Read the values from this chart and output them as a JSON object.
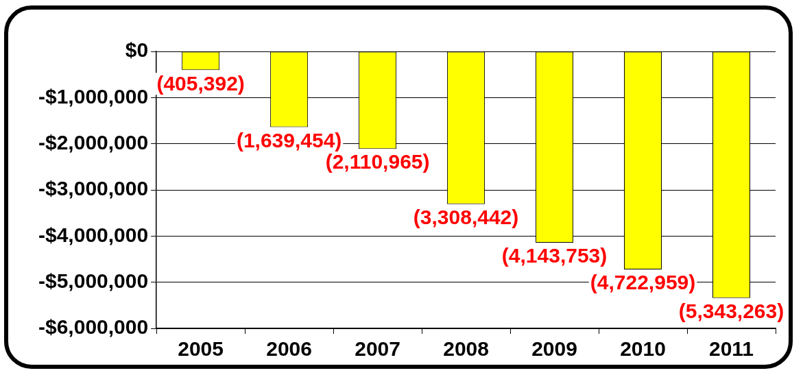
{
  "chart_data": {
    "type": "bar",
    "categories": [
      "2005",
      "2006",
      "2007",
      "2008",
      "2009",
      "2010",
      "2011"
    ],
    "values": [
      -405392,
      -1639454,
      -2110965,
      -3308442,
      -4143753,
      -4722959,
      -5343263
    ],
    "value_labels": [
      "(405,392)",
      "(1,639,454)",
      "(2,110,965)",
      "(3,308,442)",
      "(4,143,753)",
      "(4,722,959)",
      "(5,343,263)"
    ],
    "color": "#ffff00",
    "ylim": [
      -6000000,
      0
    ],
    "yticks": [
      {
        "value": -6000000,
        "label": "-$6,000,000"
      },
      {
        "value": -5000000,
        "label": "-$5,000,000"
      },
      {
        "value": -4000000,
        "label": "-$4,000,000"
      },
      {
        "value": -3000000,
        "label": "-$3,000,000"
      },
      {
        "value": -2000000,
        "label": "-$2,000,000"
      },
      {
        "value": -1000000,
        "label": "-$1,000,000"
      },
      {
        "value": 0,
        "label": "$0"
      }
    ],
    "grid": "y"
  }
}
